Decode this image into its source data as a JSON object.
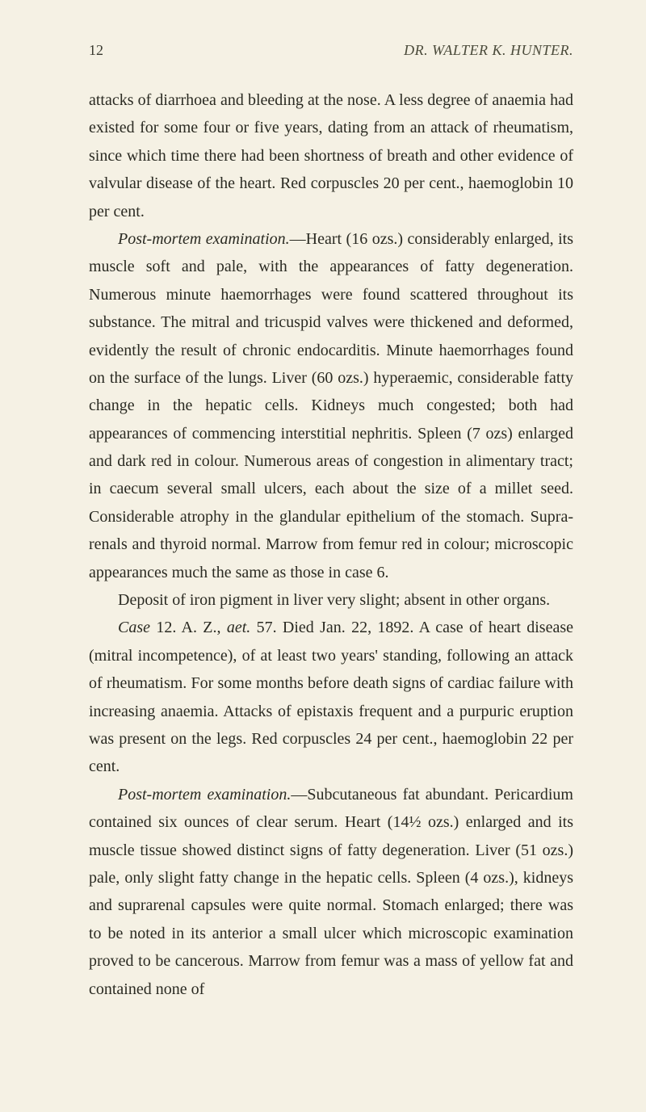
{
  "header": {
    "page_number": "12",
    "running_title": "DR. WALTER K. HUNTER."
  },
  "paragraphs": {
    "p1_part1": "attacks of diarrhoea and bleeding at the nose. A less degree of anaemia had existed for some four or five years, dating from an attack of rheumatism, since which time there had been shortness of breath and other evidence of valvular disease of the heart. Red corpuscles 20 per cent., haemoglobin 10 per cent.",
    "p2_label": "Post-mortem examination.",
    "p2_body": "—Heart (16 ozs.) considerably en­larged, its muscle soft and pale, with the appearances of fatty degeneration. Numerous minute haemorrhages were found scattered throughout its substance. The mitral and tricuspid valves were thickened and deformed, evidently the result of chronic endocarditis. Minute haemorrhages found on the surface of the lungs. Liver (60 ozs.) hyperaemic, considerable fatty change in the hepatic cells. Kidneys much congested; both had appearances of commencing interstitial nephritis. Spleen (7 ozs) enlarged and dark red in colour. Numerous areas of congestion in alimentary tract; in caecum several small ulcers, each about the size of a millet seed. Considerable atrophy in the glandular epithelium of the stomach. Supra­renals and thyroid normal. Marrow from femur red in colour; microscopic appearances much the same as those in case 6.",
    "p3": "Deposit of iron pigment in liver very slight; absent in other organs.",
    "p4_label": "Case",
    "p4_num": " 12. A. Z., ",
    "p4_aet": "aet.",
    "p4_body": " 57. Died Jan. 22, 1892. A case of heart disease (mitral incompetence), of at least two years' standing, following an attack of rheumatism. For some months before death signs of cardiac failure with increasing anaemia. Attacks of epistaxis frequent and a purpuric eruption was present on the legs. Red corpuscles 24 per cent., haemo­globin 22 per cent.",
    "p5_label": "Post-mortem examination.",
    "p5_body": "—Subcutaneous fat abundant. Peri­cardium contained six ounces of clear serum. Heart (14½ ozs.) enlarged and its muscle tissue showed distinct signs of fatty degeneration. Liver (51 ozs.) pale, only slight fatty change in the hepatic cells. Spleen (4 ozs.), kidneys and suprarenal capsules were quite normal. Stomach enlarged; there was to be noted in its anterior a small ulcer which microscopic examination proved to be cancerous. Marrow from femur was a mass of yellow fat and contained none of"
  }
}
